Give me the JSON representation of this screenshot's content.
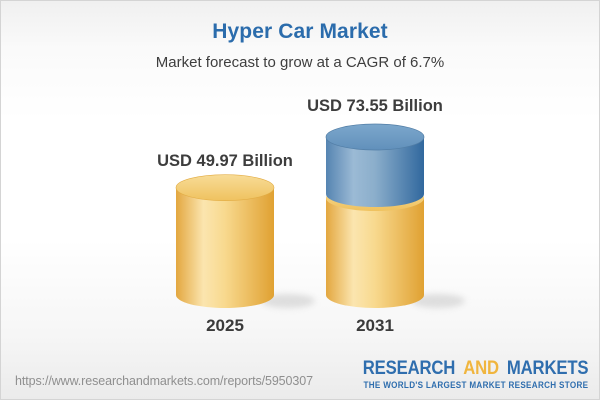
{
  "header": {
    "title": "Hyper Car Market",
    "subtitle": "Market forecast to grow at a CAGR of 6.7%"
  },
  "chart_data": {
    "type": "bar",
    "variant": "3d-cylinder",
    "categories": [
      "2025",
      "2031"
    ],
    "values": [
      49.97,
      73.55
    ],
    "value_labels": [
      "USD 49.97 Billion",
      "USD 73.55 Billion"
    ],
    "unit": "USD Billion",
    "cagr_percent": 6.7,
    "ylim": [
      0,
      80
    ],
    "grid": false,
    "legend": "none",
    "colors": {
      "base_segment_gold": "#F2C96B",
      "growth_segment_blue": "#6190BB",
      "title_accent": "#2B6CAC",
      "label_text": "#3D3D3D"
    }
  },
  "footer": {
    "url": "https://www.researchandmarkets.com/reports/5950307",
    "logo": {
      "word1": "RESEARCH",
      "word2": "AND",
      "word3": "MARKETS",
      "tagline": "THE WORLD'S LARGEST MARKET RESEARCH STORE",
      "blue": "#2F6EAE",
      "gold": "#F0B53E"
    }
  }
}
